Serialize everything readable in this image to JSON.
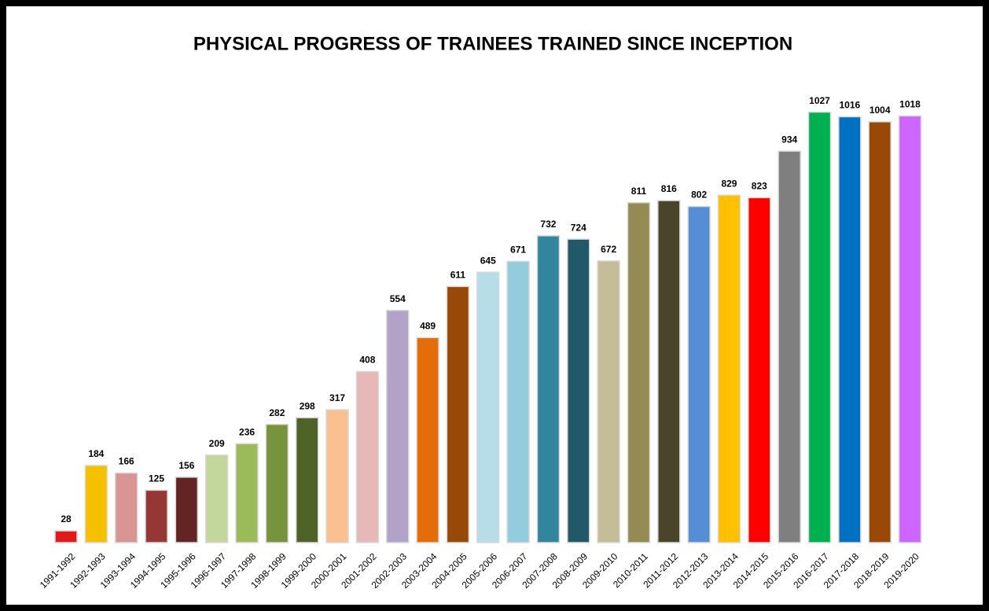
{
  "chart_data": {
    "type": "bar",
    "title": "PHYSICAL PROGRESS OF TRAINEES TRAINED SINCE INCEPTION",
    "categories": [
      "1991-1992",
      "1992-1993",
      "1993-1994",
      "1994-1995",
      "1995-1996",
      "1996-1997",
      "1997-1998",
      "1998-1999",
      "1999-2000",
      "2000-2001",
      "2001-2002",
      "2002-2003",
      "2003-2004",
      "2004-2005",
      "2005-2006",
      "2006-2007",
      "2007-2008",
      "2008-2009",
      "2009-2010",
      "2010-2011",
      "2011-2012",
      "2012-2013",
      "2013-2014",
      "2014-2015",
      "2015-2016",
      "2016-2017",
      "2017-2018",
      "2018-2019",
      "2019-2020"
    ],
    "values": [
      28,
      184,
      166,
      125,
      156,
      209,
      236,
      282,
      298,
      317,
      408,
      554,
      489,
      611,
      645,
      671,
      732,
      724,
      672,
      811,
      816,
      802,
      829,
      823,
      934,
      1027,
      1016,
      1004,
      1018
    ],
    "colors": [
      "#e31a1c",
      "#f5c000",
      "#d99594",
      "#953735",
      "#632523",
      "#c3d69b",
      "#9bbb59",
      "#77933c",
      "#4f6228",
      "#fac090",
      "#e6b9b8",
      "#b3a2c7",
      "#e46c0a",
      "#984807",
      "#b7dee8",
      "#93cddd",
      "#31859c",
      "#215968",
      "#c4bd97",
      "#948a54",
      "#4a452a",
      "#558ed5",
      "#ffc000",
      "#ff0000",
      "#7f7f7f",
      "#00b050",
      "#0070c0",
      "#984807",
      "#cc66ff"
    ],
    "grid": false
  }
}
